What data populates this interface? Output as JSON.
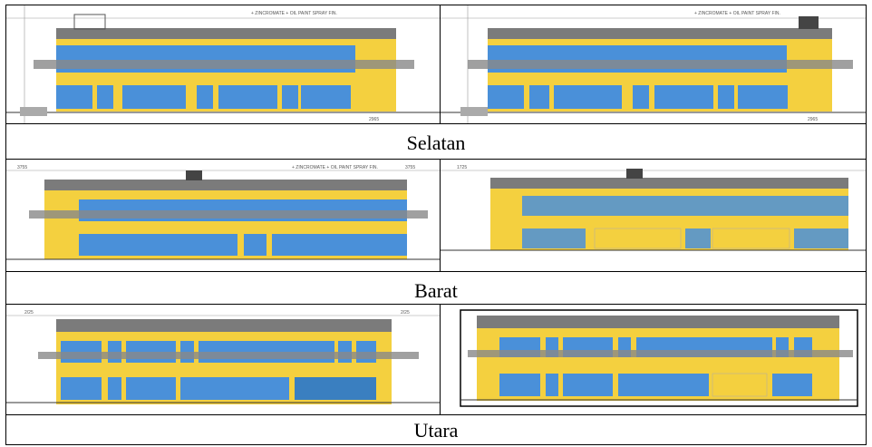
{
  "captions": {
    "south": "Selatan",
    "west": "Barat",
    "north": "Utara"
  },
  "drawing_notes": {
    "note_1": "+ ZINCROMATE + OIL PAINT SPRAY FIN.",
    "note_2": "+ ZINCROMATE + OIL PAINT SPRAY FIN.",
    "note_3": "+ ZINCROMATE + OIL PAINT SPRAY FIN.",
    "dim_2965_a": "2965",
    "dim_2965_b": "2965",
    "dim_3755_a": "3755",
    "dim_3755_b": "3755",
    "dim_1725": "1725",
    "dim_2725_a": "2/25",
    "dim_2725_b": "2/25"
  },
  "colors": {
    "yellow": "#f4d03f",
    "blue": "#4a90d9",
    "roof": "#7b7b7b",
    "line": "#333333"
  }
}
